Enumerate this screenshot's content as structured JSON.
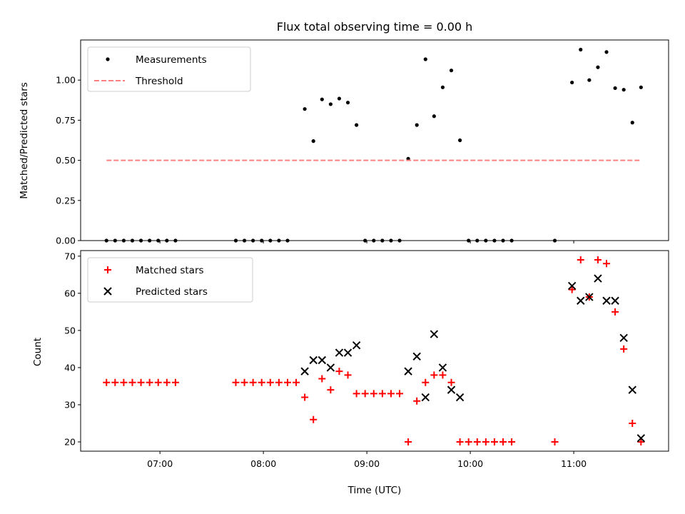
{
  "chart_data": [
    {
      "type": "scatter",
      "title": "Flux total observing time = 0.00 h",
      "xlabel": "",
      "ylabel": "Matched/Predicted stars",
      "xlim": [
        "06:14",
        "11:55"
      ],
      "ylim": [
        0,
        1.25
      ],
      "yticks": [
        "0.00",
        "0.25",
        "0.50",
        "0.75",
        "1.00"
      ],
      "legend_position": "upper-left",
      "series": [
        {
          "name": "Measurements",
          "marker": "dot",
          "color": "#000000",
          "points": [
            [
              "06:29",
              0
            ],
            [
              "06:34",
              0
            ],
            [
              "06:39",
              0
            ],
            [
              "06:44",
              0
            ],
            [
              "06:49",
              0
            ],
            [
              "06:54",
              0
            ],
            [
              "06:59",
              0
            ],
            [
              "07:04",
              0
            ],
            [
              "07:09",
              0
            ],
            [
              "07:44",
              0
            ],
            [
              "07:49",
              0
            ],
            [
              "07:54",
              0
            ],
            [
              "07:59",
              0
            ],
            [
              "08:04",
              0
            ],
            [
              "08:09",
              0
            ],
            [
              "08:14",
              0
            ],
            [
              "08:24",
              0.82
            ],
            [
              "08:29",
              0.62
            ],
            [
              "08:34",
              0.88
            ],
            [
              "08:39",
              0.85
            ],
            [
              "08:44",
              0.885
            ],
            [
              "08:49",
              0.86
            ],
            [
              "08:54",
              0.72
            ],
            [
              "08:59",
              0
            ],
            [
              "09:04",
              0
            ],
            [
              "09:09",
              0
            ],
            [
              "09:14",
              0
            ],
            [
              "09:19",
              0
            ],
            [
              "09:24",
              0.51
            ],
            [
              "09:29",
              0.72
            ],
            [
              "09:34",
              1.13
            ],
            [
              "09:39",
              0.775
            ],
            [
              "09:44",
              0.955
            ],
            [
              "09:49",
              1.06
            ],
            [
              "09:54",
              0.625
            ],
            [
              "09:59",
              0
            ],
            [
              "10:04",
              0
            ],
            [
              "10:09",
              0
            ],
            [
              "10:14",
              0
            ],
            [
              "10:19",
              0
            ],
            [
              "10:24",
              0
            ],
            [
              "10:49",
              0
            ],
            [
              "10:59",
              0.985
            ],
            [
              "11:04",
              1.19
            ],
            [
              "11:09",
              1.0
            ],
            [
              "11:14",
              1.08
            ],
            [
              "11:19",
              1.175
            ],
            [
              "11:24",
              0.95
            ],
            [
              "11:29",
              0.94
            ],
            [
              "11:34",
              0.735
            ],
            [
              "11:39",
              0.955
            ]
          ]
        },
        {
          "name": "Threshold",
          "marker": "dashed-line",
          "color": "#ff8080",
          "points": [
            [
              "06:29",
              0.5
            ],
            [
              "11:39",
              0.5
            ]
          ]
        }
      ]
    },
    {
      "type": "scatter",
      "title": "",
      "xlabel": "Time (UTC)",
      "ylabel": "Count",
      "xlim": [
        "06:14",
        "11:55"
      ],
      "ylim": [
        17.5,
        71.5
      ],
      "yticks": [
        "20",
        "30",
        "40",
        "50",
        "60",
        "70"
      ],
      "xticks": [
        "07:00",
        "08:00",
        "09:00",
        "10:00",
        "11:00"
      ],
      "legend_position": "upper-left",
      "series": [
        {
          "name": "Matched stars",
          "marker": "plus",
          "color": "#ff0000",
          "points": [
            [
              "06:29",
              36
            ],
            [
              "06:34",
              36
            ],
            [
              "06:39",
              36
            ],
            [
              "06:44",
              36
            ],
            [
              "06:49",
              36
            ],
            [
              "06:54",
              36
            ],
            [
              "06:59",
              36
            ],
            [
              "07:04",
              36
            ],
            [
              "07:09",
              36
            ],
            [
              "07:44",
              36
            ],
            [
              "07:49",
              36
            ],
            [
              "07:54",
              36
            ],
            [
              "07:59",
              36
            ],
            [
              "08:04",
              36
            ],
            [
              "08:09",
              36
            ],
            [
              "08:14",
              36
            ],
            [
              "08:19",
              36
            ],
            [
              "08:24",
              32
            ],
            [
              "08:29",
              26
            ],
            [
              "08:34",
              37
            ],
            [
              "08:39",
              34
            ],
            [
              "08:44",
              39
            ],
            [
              "08:49",
              38
            ],
            [
              "08:54",
              33
            ],
            [
              "08:59",
              33
            ],
            [
              "09:04",
              33
            ],
            [
              "09:09",
              33
            ],
            [
              "09:14",
              33
            ],
            [
              "09:19",
              33
            ],
            [
              "09:24",
              20
            ],
            [
              "09:29",
              31
            ],
            [
              "09:34",
              36
            ],
            [
              "09:39",
              38
            ],
            [
              "09:44",
              38
            ],
            [
              "09:49",
              36
            ],
            [
              "09:54",
              20
            ],
            [
              "09:59",
              20
            ],
            [
              "10:04",
              20
            ],
            [
              "10:09",
              20
            ],
            [
              "10:14",
              20
            ],
            [
              "10:19",
              20
            ],
            [
              "10:24",
              20
            ],
            [
              "10:49",
              20
            ],
            [
              "10:59",
              61
            ],
            [
              "11:04",
              69
            ],
            [
              "11:09",
              59
            ],
            [
              "11:14",
              69
            ],
            [
              "11:19",
              68
            ],
            [
              "11:24",
              55
            ],
            [
              "11:29",
              45
            ],
            [
              "11:34",
              25
            ],
            [
              "11:39",
              20
            ]
          ]
        },
        {
          "name": "Predicted stars",
          "marker": "x",
          "color": "#000000",
          "points": [
            [
              "08:24",
              39
            ],
            [
              "08:29",
              42
            ],
            [
              "08:34",
              42
            ],
            [
              "08:39",
              40
            ],
            [
              "08:44",
              44
            ],
            [
              "08:49",
              44
            ],
            [
              "08:54",
              46
            ],
            [
              "09:24",
              39
            ],
            [
              "09:29",
              43
            ],
            [
              "09:34",
              32
            ],
            [
              "09:39",
              49
            ],
            [
              "09:44",
              40
            ],
            [
              "09:49",
              34
            ],
            [
              "09:54",
              32
            ],
            [
              "10:59",
              62
            ],
            [
              "11:04",
              58
            ],
            [
              "11:09",
              59
            ],
            [
              "11:14",
              64
            ],
            [
              "11:19",
              58
            ],
            [
              "11:24",
              58
            ],
            [
              "11:29",
              48
            ],
            [
              "11:34",
              34
            ],
            [
              "11:39",
              21
            ]
          ]
        }
      ]
    }
  ]
}
